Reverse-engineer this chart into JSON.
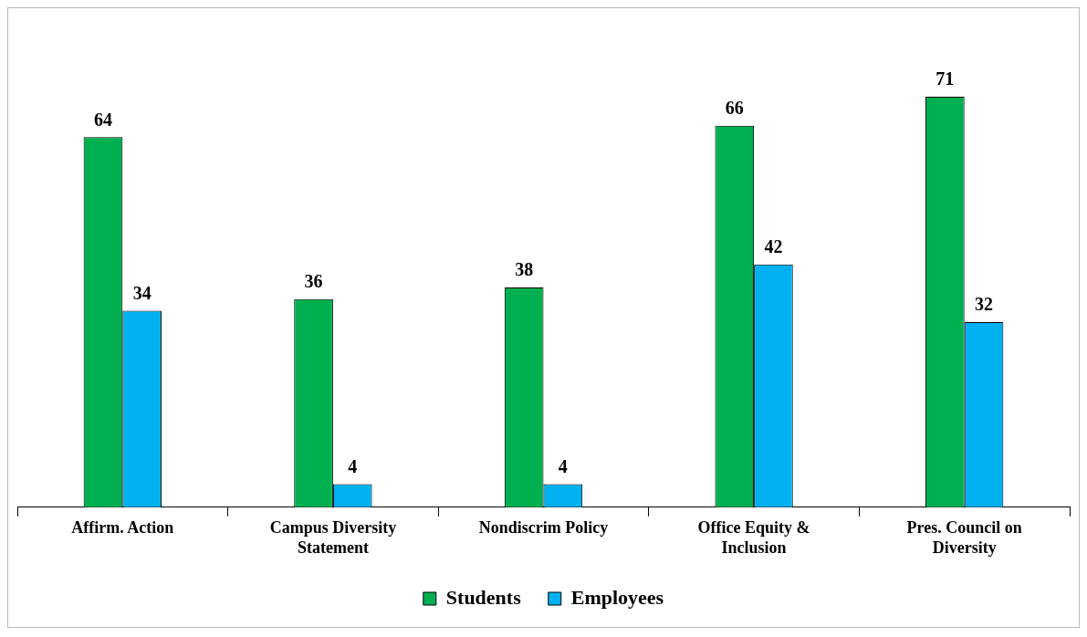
{
  "chart_data": {
    "type": "bar",
    "categories": [
      "Affirm. Action",
      "Campus Diversity Statement",
      "Nondiscrim Policy",
      "Office Equity & Inclusion",
      "Pres. Council on Diversity"
    ],
    "series": [
      {
        "name": "Students",
        "color": "#00b050",
        "values": [
          64,
          36,
          38,
          66,
          71
        ]
      },
      {
        "name": "Employees",
        "color": "#00b0f0",
        "values": [
          34,
          4,
          4,
          42,
          32
        ]
      }
    ],
    "data_labels": true,
    "grid": false,
    "legend": "bottom"
  }
}
